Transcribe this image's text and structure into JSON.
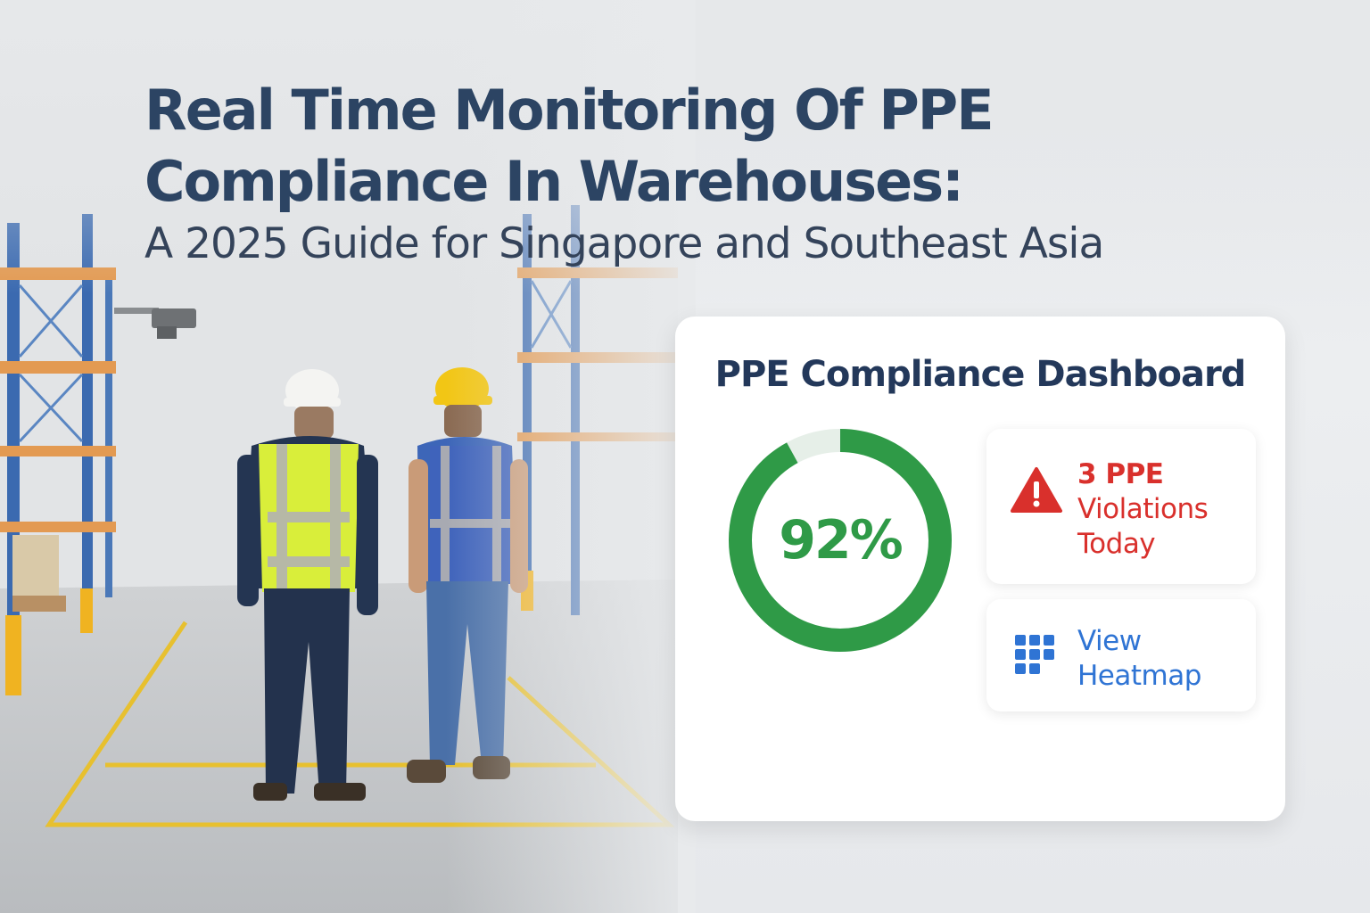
{
  "headline": {
    "title_line_1": "Real Time Monitoring Of PPE",
    "title_line_2": "Compliance In Warehouses:",
    "subtitle": "A 2025 Guide for Singapore and Southeast Asia"
  },
  "dashboard": {
    "title": "PPE Compliance Dashboard",
    "compliance": {
      "label": "92%",
      "value": 0.92,
      "color": "#2f9a47"
    },
    "violations": {
      "count_label": "3 PPE",
      "text_line_1": "Violations",
      "text_line_2": "Today",
      "icon": "warning-triangle-icon",
      "color": "#d9302c"
    },
    "heatmap": {
      "line_1": "View",
      "line_2": "Heatmap",
      "icon": "grid-icon",
      "color": "#2f74d4"
    }
  },
  "colors": {
    "headline": "#2c4463",
    "rack_blue": "#3b6ab0",
    "rack_orange": "#e39a52",
    "floor_tape": "#e7c02f"
  }
}
